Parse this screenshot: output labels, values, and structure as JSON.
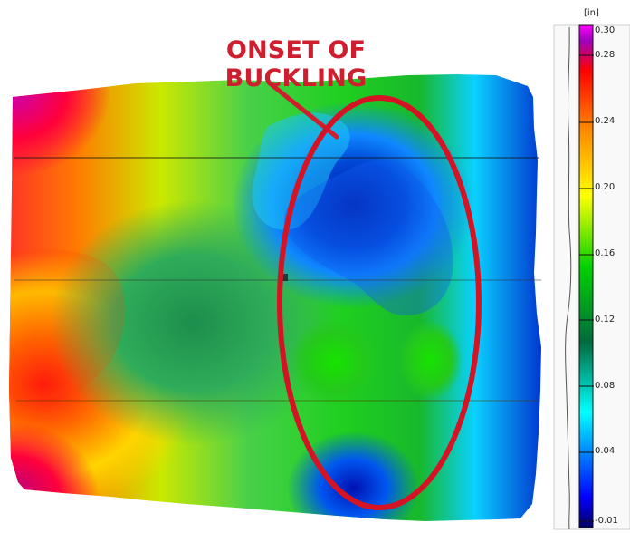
{
  "annotation": {
    "title": "ONSET OF BUCKLING",
    "color": "#cf1f2f"
  },
  "colorbar": {
    "unit": "[in]",
    "ticks": [
      "0.30",
      "0.28",
      "0.24",
      "0.20",
      "0.16",
      "0.12",
      "0.08",
      "0.04",
      "-0.01"
    ],
    "colors": [
      "#6b00ff",
      "#0000ff",
      "#00c8ff",
      "#008c3b",
      "#00dc00",
      "#ffff00",
      "#ff9a00",
      "#ff0000",
      "#a00080",
      "#ff00ff"
    ]
  }
}
